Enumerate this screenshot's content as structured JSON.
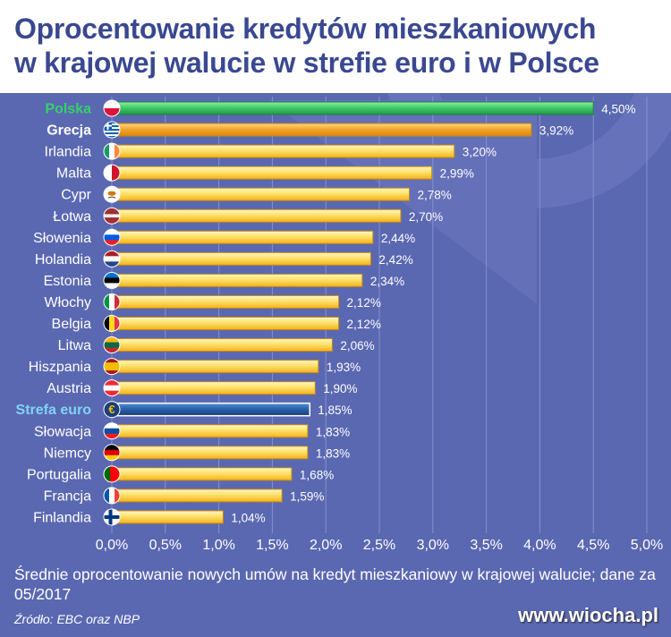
{
  "chart_data": {
    "type": "bar",
    "orientation": "horizontal",
    "title_line_1": "Oprocentowanie kredytów mieszkaniowych",
    "title_line_2": "w krajowej walucie w strefie euro i w Polsce",
    "note": "Średnie oprocentowanie nowych umów na kredyt mieszkaniowy w krajowej walucie; dane za 05/2017",
    "source": "Źródło: EBC oraz NBP",
    "watermark": "www.wiocha.pl",
    "xlim": [
      0,
      5
    ],
    "xticks": [
      "0,0%",
      "0,5%",
      "1,0%",
      "1,5%",
      "2,0%",
      "2,5%",
      "3,0%",
      "3,5%",
      "4,0%",
      "4,5%",
      "5,0%"
    ],
    "grid": true,
    "unit": "%",
    "categories": [
      "Polska",
      "Grecja",
      "Irlandia",
      "Malta",
      "Cypr",
      "Łotwa",
      "Słowenia",
      "Holandia",
      "Estonia",
      "Włochy",
      "Belgia",
      "Litwa",
      "Hiszpania",
      "Austria",
      "Strefa euro",
      "Słowacja",
      "Niemcy",
      "Portugalia",
      "Francja",
      "Finlandia"
    ],
    "values": [
      4.5,
      3.92,
      3.2,
      2.99,
      2.78,
      2.7,
      2.44,
      2.42,
      2.34,
      2.12,
      2.12,
      2.06,
      1.93,
      1.9,
      1.85,
      1.83,
      1.83,
      1.68,
      1.59,
      1.04
    ],
    "value_labels": [
      "4,50%",
      "3,92%",
      "3,20%",
      "2,99%",
      "2,78%",
      "2,70%",
      "2,44%",
      "2,42%",
      "2,34%",
      "2,12%",
      "2,12%",
      "2,06%",
      "1,93%",
      "1,90%",
      "1,85%",
      "1,83%",
      "1,83%",
      "1,68%",
      "1,59%",
      "1,04%"
    ],
    "highlighted": {
      "Polska": "green",
      "Grecja": "orange",
      "Strefa euro": "blue"
    },
    "flag_icons": [
      "flag-poland-icon",
      "flag-greece-icon",
      "flag-ireland-icon",
      "flag-malta-icon",
      "flag-cyprus-icon",
      "flag-latvia-icon",
      "flag-slovenia-icon",
      "flag-netherlands-icon",
      "flag-estonia-icon",
      "flag-italy-icon",
      "flag-belgium-icon",
      "flag-lithuania-icon",
      "flag-spain-icon",
      "flag-austria-icon",
      "euro-symbol-icon",
      "flag-slovakia-icon",
      "flag-germany-icon",
      "flag-portugal-icon",
      "flag-france-icon",
      "flag-finland-icon"
    ],
    "colors": {
      "background": "#5a68b1",
      "title": "#3a4891",
      "bar_default": "#ffd54a",
      "bar_greece": "#f0a328",
      "bar_poland": "#3fc566",
      "bar_eurozone": "#2a5fa8",
      "label_poland": "#35d06a",
      "label_eurozone": "#7fd4f5",
      "text": "#ffffff"
    }
  }
}
